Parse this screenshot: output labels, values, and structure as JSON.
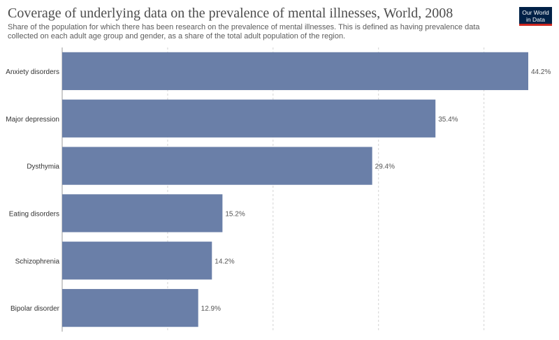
{
  "header": {
    "title": "Coverage of underlying data on the prevalence of mental illnesses, World, 2008",
    "subtitle": "Share of the population for which there has been research on the prevalence of mental illnesses. This is defined as having prevalence data collected on each adult age group and gender, as a share of the total adult population of the region."
  },
  "logo": {
    "line1": "Our World",
    "line2": "in Data"
  },
  "colors": {
    "bar": "#6a7fa8",
    "grid": "#d3d3d3",
    "axis": "#9a9a9a",
    "label": "#333333",
    "value": "#555555"
  },
  "chart_data": {
    "type": "bar",
    "orientation": "horizontal",
    "categories": [
      "Anxiety disorders",
      "Major depression",
      "Dysthymia",
      "Eating disorders",
      "Schizophrenia",
      "Bipolar disorder"
    ],
    "values": [
      44.2,
      35.4,
      29.4,
      15.2,
      14.2,
      12.9
    ],
    "value_labels": [
      "44.2%",
      "35.4%",
      "29.4%",
      "15.2%",
      "14.2%",
      "12.9%"
    ],
    "unit": "%",
    "xlim": [
      0,
      45
    ],
    "grid_values": [
      10,
      20,
      30,
      40
    ],
    "grid": true,
    "legend": "none"
  }
}
